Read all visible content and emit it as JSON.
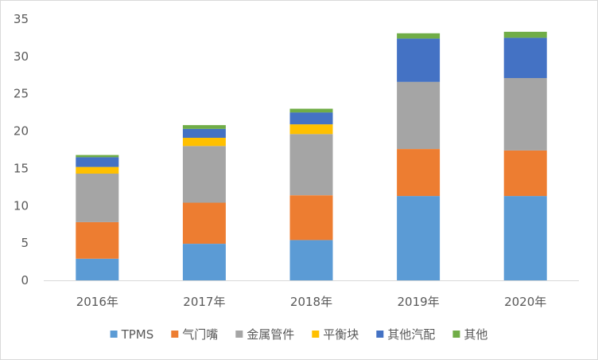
{
  "chart_data": {
    "type": "bar",
    "stacked": true,
    "categories": [
      "2016年",
      "2017年",
      "2018年",
      "2019年",
      "2020年"
    ],
    "series": [
      {
        "name": "TPMS",
        "color": "#5b9bd5",
        "values": [
          2.9,
          4.9,
          5.4,
          11.3,
          11.3
        ]
      },
      {
        "name": "气门嘴",
        "color": "#ed7d31",
        "values": [
          4.9,
          5.5,
          6.0,
          6.3,
          6.1
        ]
      },
      {
        "name": "金属管件",
        "color": "#a5a5a5",
        "values": [
          6.5,
          7.6,
          8.2,
          9.0,
          9.7
        ]
      },
      {
        "name": "平衡块",
        "color": "#ffc000",
        "values": [
          0.9,
          1.1,
          1.3,
          0.0,
          0.0
        ]
      },
      {
        "name": "其他汽配",
        "color": "#4472c4",
        "values": [
          1.3,
          1.2,
          1.6,
          5.8,
          5.4
        ]
      },
      {
        "name": "其他",
        "color": "#70ad47",
        "values": [
          0.3,
          0.5,
          0.5,
          0.7,
          0.8
        ]
      }
    ],
    "ylim": [
      0,
      35
    ],
    "yticks": [
      0,
      5,
      10,
      15,
      20,
      25,
      30,
      35
    ],
    "grid": false,
    "legend": "bottom"
  }
}
